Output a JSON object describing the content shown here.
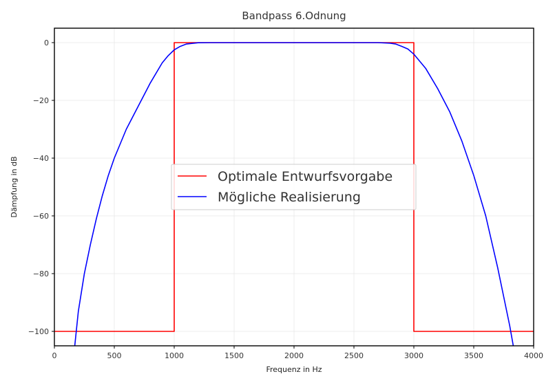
{
  "chart_data": {
    "type": "line",
    "title": "Bandpass 6.Odnung",
    "xlabel": "Frequenz in Hz",
    "ylabel": "Dämpfung in dB",
    "xlim": [
      0,
      4000
    ],
    "ylim": [
      -105,
      5
    ],
    "xticks": [
      0,
      500,
      1000,
      1500,
      2000,
      2500,
      3000,
      3500,
      4000
    ],
    "yticks": [
      0,
      -20,
      -40,
      -60,
      -80,
      -100
    ],
    "grid": true,
    "legend_position": "center",
    "series": [
      {
        "name": "Optimale Entwurfsvorgabe",
        "color": "#ff0000",
        "x": [
          0,
          1000,
          1000,
          3000,
          3000,
          4000
        ],
        "y": [
          -100,
          -100,
          0,
          0,
          -100,
          -100
        ]
      },
      {
        "name": "Mögliche Realisierung",
        "color": "#0000ff",
        "x": [
          170,
          200,
          250,
          300,
          350,
          400,
          450,
          500,
          600,
          700,
          800,
          900,
          950,
          1000,
          1050,
          1100,
          1200,
          1300,
          1500,
          2000,
          2500,
          2700,
          2800,
          2850,
          2900,
          2950,
          3000,
          3100,
          3200,
          3300,
          3400,
          3500,
          3600,
          3700,
          3750,
          3800,
          3830
        ],
        "y": [
          -105,
          -93,
          -80,
          -70,
          -61,
          -53,
          -46,
          -40,
          -30,
          -22,
          -14,
          -7,
          -4.5,
          -2.5,
          -1.3,
          -0.5,
          -0.05,
          0,
          0,
          0,
          0,
          0,
          -0.2,
          -0.5,
          -1.3,
          -2.2,
          -4,
          -9,
          -16,
          -24,
          -34,
          -46,
          -60,
          -78,
          -88,
          -98,
          -105
        ]
      }
    ]
  }
}
